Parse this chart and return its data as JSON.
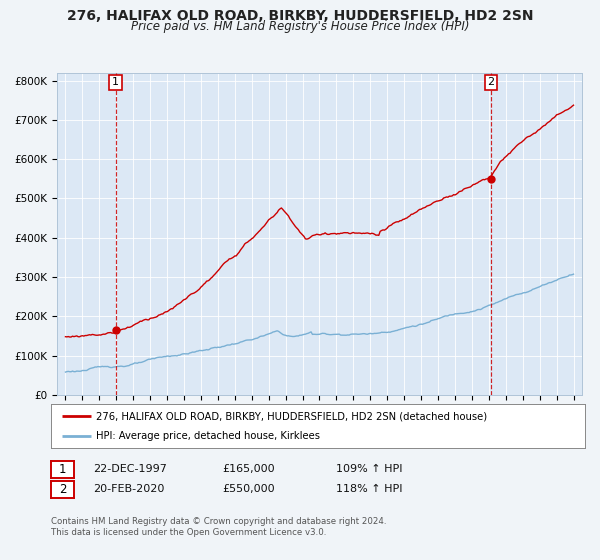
{
  "title_line1": "276, HALIFAX OLD ROAD, BIRKBY, HUDDERSFIELD, HD2 2SN",
  "title_line2": "Price paid vs. HM Land Registry's House Price Index (HPI)",
  "legend_label_red": "276, HALIFAX OLD ROAD, BIRKBY, HUDDERSFIELD, HD2 2SN (detached house)",
  "legend_label_blue": "HPI: Average price, detached house, Kirklees",
  "annotation1_date": "22-DEC-1997",
  "annotation1_price": "£165,000",
  "annotation1_hpi": "109% ↑ HPI",
  "annotation2_date": "20-FEB-2020",
  "annotation2_price": "£550,000",
  "annotation2_hpi": "118% ↑ HPI",
  "footnote_line1": "Contains HM Land Registry data © Crown copyright and database right 2024.",
  "footnote_line2": "This data is licensed under the Open Government Licence v3.0.",
  "xlim": [
    1994.5,
    2025.5
  ],
  "ylim": [
    0,
    820000
  ],
  "fig_bg": "#f0f4f8",
  "plot_bg": "#dce8f5",
  "red_color": "#cc0000",
  "blue_color": "#7ab0d4",
  "vline_color": "#cc0000",
  "sale1_x": 1997.97,
  "sale1_y": 165000,
  "sale2_x": 2020.13,
  "sale2_y": 550000,
  "yticks": [
    0,
    100000,
    200000,
    300000,
    400000,
    500000,
    600000,
    700000,
    800000
  ],
  "ytick_labels": [
    "£0",
    "£100K",
    "£200K",
    "£300K",
    "£400K",
    "£500K",
    "£600K",
    "£700K",
    "£800K"
  ]
}
